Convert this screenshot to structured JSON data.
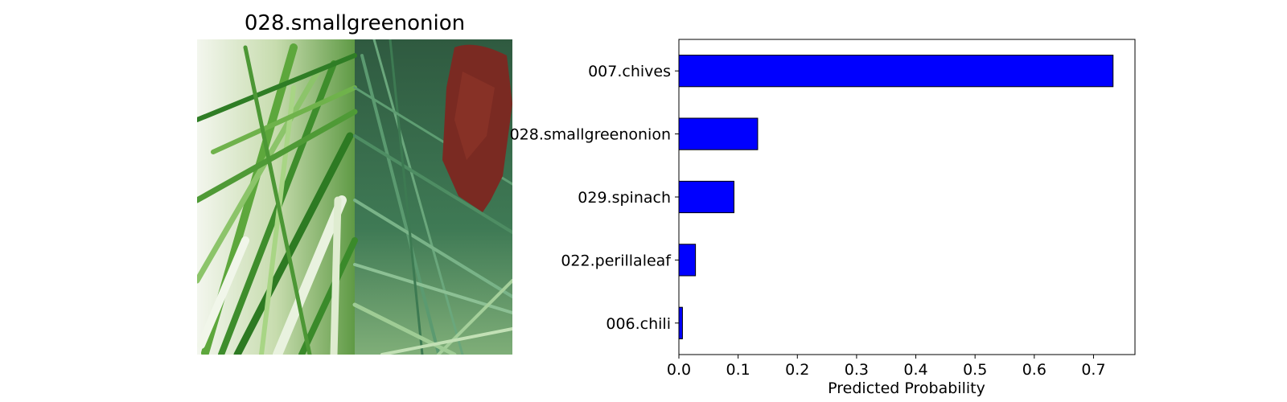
{
  "image_panel": {
    "title": "028.smallgreenonion",
    "photo_description_icon": "green-onion-photo"
  },
  "chart_data": {
    "type": "bar",
    "orientation": "horizontal",
    "categories": [
      "007.chives",
      "028.smallgreenonion",
      "029.spinach",
      "022.perillaleaf",
      "006.chili"
    ],
    "values": [
      0.733,
      0.133,
      0.093,
      0.028,
      0.006
    ],
    "xlabel": "Predicted Probability",
    "ylabel": "",
    "xlim": [
      0,
      0.77
    ],
    "xticks": [
      "0.0",
      "0.1",
      "0.2",
      "0.3",
      "0.4",
      "0.5",
      "0.6",
      "0.7"
    ],
    "xtick_values": [
      0.0,
      0.1,
      0.2,
      0.3,
      0.4,
      0.5,
      0.6,
      0.7
    ],
    "bar_color": "#0000ff",
    "edge_color": "#000000",
    "grid": false,
    "legend": "none"
  }
}
